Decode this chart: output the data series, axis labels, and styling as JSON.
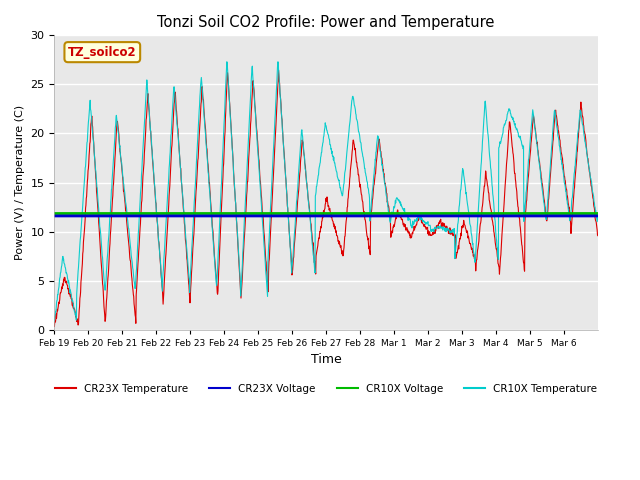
{
  "title": "Tonzi Soil CO2 Profile: Power and Temperature",
  "ylabel": "Power (V) / Temperature (C)",
  "xlabel": "Time",
  "ylim": [
    0,
    30
  ],
  "bg_color": "#e8e8e8",
  "fig_color": "#ffffff",
  "label_box_text": "TZ_soilco2",
  "label_box_bg": "#ffffdd",
  "label_box_edge": "#bb8800",
  "label_box_text_color": "#cc0000",
  "legend_items": [
    "CR23X Temperature",
    "CR23X Voltage",
    "CR10X Voltage",
    "CR10X Temperature"
  ],
  "legend_colors": [
    "#dd0000",
    "#0000cc",
    "#00bb00",
    "#00cccc"
  ],
  "cr23x_voltage_value": 11.6,
  "cr10x_voltage_value": 11.85,
  "tick_labels": [
    "Feb 19",
    "Feb 20",
    "Feb 21",
    "Feb 22",
    "Feb 23",
    "Feb 24",
    "Feb 25",
    "Feb 26",
    "Feb 27",
    "Feb 28",
    "Mar 1",
    "Mar 2",
    "Mar 3",
    "Mar 4",
    "Mar 5",
    "Mar 6"
  ],
  "num_days": 16
}
